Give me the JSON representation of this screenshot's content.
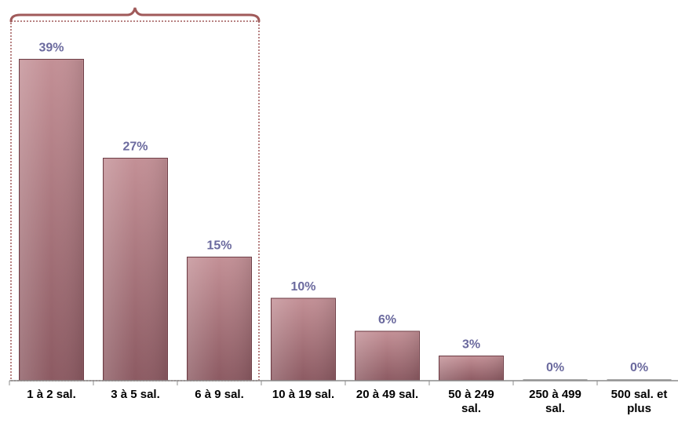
{
  "chart_data": {
    "type": "bar",
    "categories": [
      [
        "1 à 2 sal."
      ],
      [
        "3 à 5 sal."
      ],
      [
        "6 à 9 sal."
      ],
      [
        "10 à 19 sal."
      ],
      [
        "20 à 49 sal."
      ],
      [
        "50 à 249",
        "sal."
      ],
      [
        "250 à 499",
        "sal."
      ],
      [
        "500 sal. et",
        "plus"
      ]
    ],
    "values": [
      39,
      27,
      15,
      10,
      6,
      3,
      0,
      0
    ],
    "value_labels": [
      "39%",
      "27%",
      "15%",
      "10%",
      "6%",
      "3%",
      "0%",
      "0%"
    ],
    "unit": "%",
    "ylim": [
      0,
      45
    ],
    "grid": false,
    "legend": "none",
    "highlight_group": {
      "categories": [
        0,
        1,
        2
      ]
    },
    "colors": {
      "bar_top": "#c39096",
      "bar_bottom": "#8c5a62",
      "bar_border": "#6e3f47",
      "value_label": "#6b6a9e",
      "group_outline": "#a05a5a",
      "axis": "#8c8c8c"
    }
  }
}
